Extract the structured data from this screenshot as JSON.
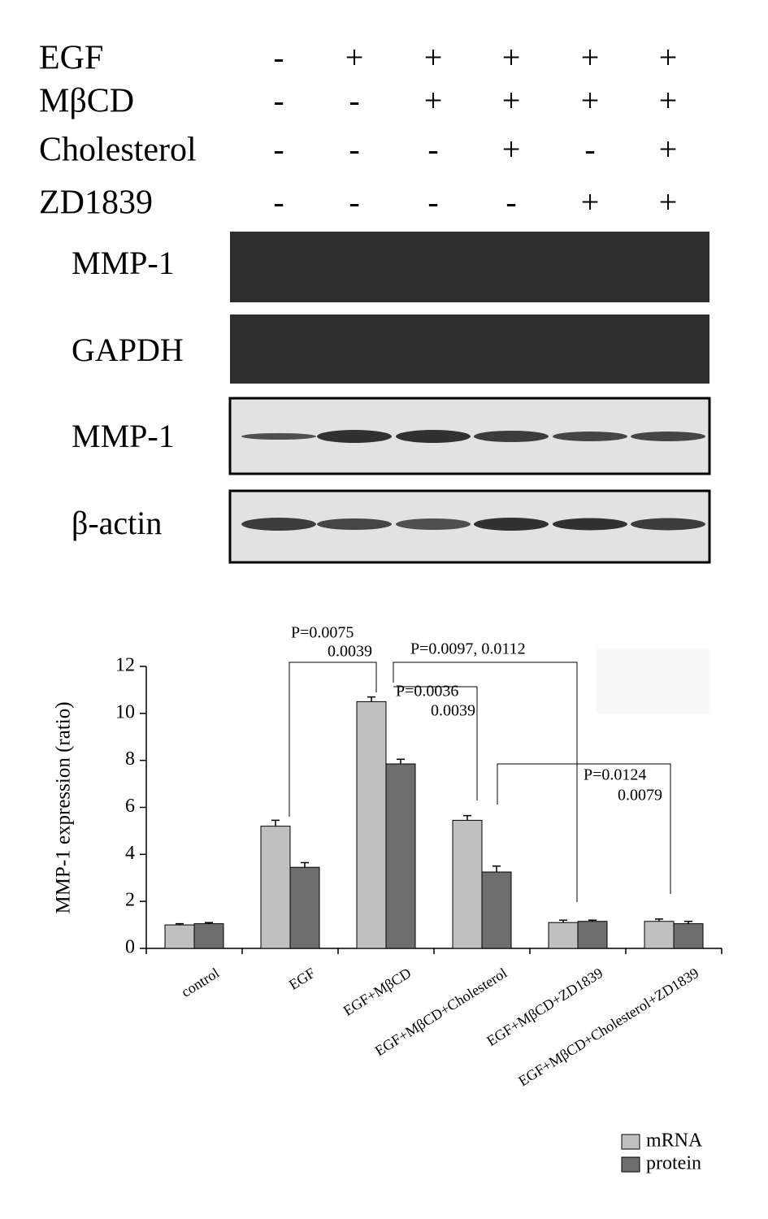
{
  "treatments": {
    "rows": [
      {
        "label": "EGF",
        "signs": [
          "-",
          "+",
          "+",
          "+",
          "+",
          "+"
        ]
      },
      {
        "label": "MβCD",
        "signs": [
          "-",
          "-",
          "+",
          "+",
          "+",
          "+"
        ]
      },
      {
        "label": "Cholesterol",
        "signs": [
          "-",
          "-",
          "-",
          "+",
          "-",
          "+"
        ]
      },
      {
        "label": "ZD1839",
        "signs": [
          "-",
          "-",
          "-",
          "-",
          "+",
          "+"
        ]
      }
    ]
  },
  "blots": [
    "MMP-1",
    "GAPDH",
    "MMP-1",
    "β-actin"
  ],
  "chart_data": {
    "type": "bar",
    "y_label": "MMP-1 expression (ratio)",
    "categories": [
      "control",
      "EGF",
      "EGF+MβCD",
      "EGF+MβCD+Cholesterol",
      "EGF+MβCD+ZD1839",
      "EGF+MβCD+Cholesterol+ZD1839"
    ],
    "series": [
      {
        "name": "mRNA",
        "color": "#c0c0c0",
        "values": [
          1.0,
          5.2,
          10.5,
          5.45,
          1.1,
          1.15
        ],
        "errors": [
          0.05,
          0.25,
          0.2,
          0.2,
          0.1,
          0.1
        ]
      },
      {
        "name": "protein",
        "color": "#6e6e6e",
        "values": [
          1.05,
          3.45,
          7.85,
          3.25,
          1.15,
          1.05
        ],
        "errors": [
          0.05,
          0.2,
          0.2,
          0.25,
          0.05,
          0.1
        ]
      }
    ],
    "ylim": [
      0,
      12
    ],
    "yticks": [
      0,
      2,
      4,
      6,
      8,
      10,
      12
    ],
    "annotations": [
      "P=0.0075",
      "0.0039",
      "P=0.0097, 0.0112",
      "P=0.0036",
      "0.0039",
      "P=0.0124",
      "0.0079"
    ],
    "legend": "bottom-right"
  }
}
